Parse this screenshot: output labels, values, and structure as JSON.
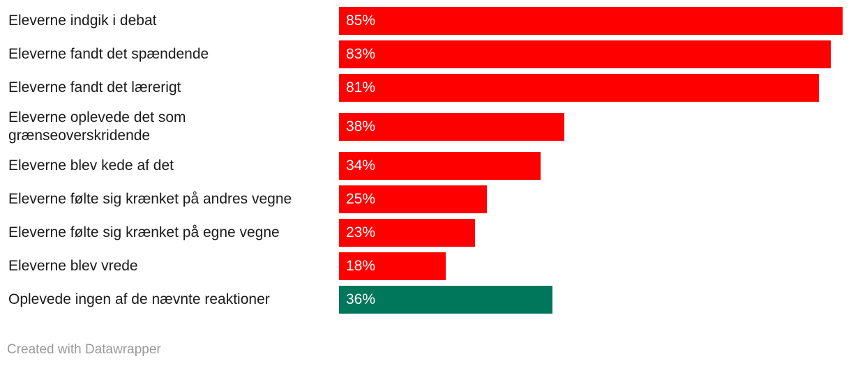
{
  "chart_data": {
    "type": "bar",
    "orientation": "horizontal",
    "categories": [
      "Eleverne indgik i debat",
      "Eleverne fandt det spændende",
      "Eleverne fandt det lærerigt",
      "Eleverne oplevede det som grænseoverskridende",
      "Eleverne blev kede af det",
      "Eleverne følte sig krænket på andres vegne",
      "Eleverne følte sig krænket på egne vegne",
      "Eleverne blev vrede",
      "Oplevede ingen af de nævnte reaktioner"
    ],
    "values": [
      85,
      83,
      81,
      38,
      34,
      25,
      23,
      18,
      36
    ],
    "value_labels": [
      "85%",
      "83%",
      "81%",
      "38%",
      "34%",
      "25%",
      "23%",
      "18%",
      "36%"
    ],
    "bar_colors": [
      "#ff0000",
      "#ff0000",
      "#ff0000",
      "#ff0000",
      "#ff0000",
      "#ff0000",
      "#ff0000",
      "#ff0000",
      "#00765a"
    ],
    "xlim": [
      0,
      85
    ],
    "grid": false,
    "legend": "none"
  },
  "footer": {
    "credit": "Created with Datawrapper"
  },
  "colors": {
    "primary_bar": "#ff0000",
    "highlight_bar": "#00765a",
    "label_text": "#1a1a1a",
    "footer_text": "#9a9a9a"
  }
}
